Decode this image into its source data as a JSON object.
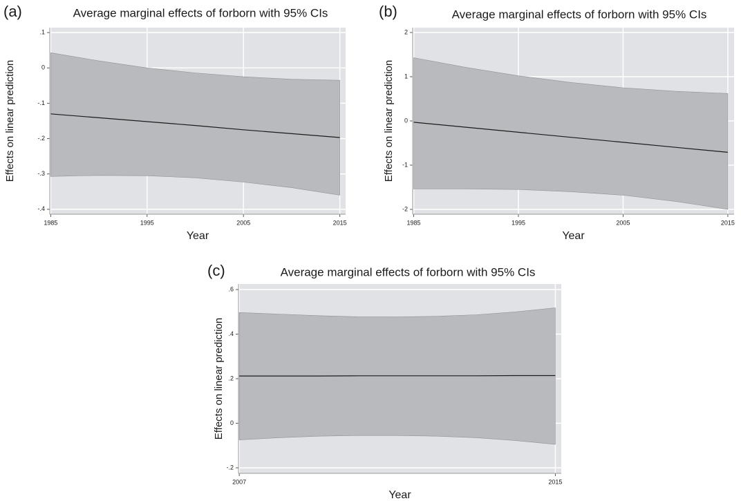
{
  "chart_data": [
    {
      "type": "line",
      "panel_label": "(a)",
      "title": "Average marginal effects of forborn with 95% CIs",
      "x_label": "Year",
      "y_label": "Effects on linear prediction",
      "x": [
        1985,
        1990,
        1995,
        2000,
        2005,
        2010,
        2015
      ],
      "series": [
        {
          "color": "#1a1a1a",
          "values": [
            -0.13,
            -0.141,
            -0.152,
            -0.163,
            -0.175,
            -0.186,
            -0.197
          ]
        }
      ],
      "ci_upper": [
        0.043,
        0.02,
        0.0,
        -0.014,
        -0.025,
        -0.032,
        -0.035
      ],
      "ci_lower": [
        -0.307,
        -0.304,
        -0.305,
        -0.311,
        -0.323,
        -0.339,
        -0.36
      ],
      "ci_color": "#b9babe",
      "xlim": [
        1984.9,
        2015.6
      ],
      "xticks": [
        1985,
        1995,
        2005,
        2015
      ],
      "ylim": [
        -0.414,
        0.114
      ],
      "yticks": [
        {
          "value": 0.1,
          "label": ".1"
        },
        0,
        {
          "value": -0.1,
          "label": "-.1"
        },
        {
          "value": -0.2,
          "label": "-.2"
        },
        {
          "value": -0.3,
          "label": "-.3"
        },
        {
          "value": -0.4,
          "label": "-.4"
        }
      ],
      "grid": true
    },
    {
      "type": "line",
      "panel_label": "(b)",
      "title": "Average marginal effects of forborn with 95% CIs",
      "x_label": "Year",
      "y_label": "Effects on linear prediction",
      "x": [
        1985,
        1990,
        1995,
        2000,
        2005,
        2010,
        2015
      ],
      "series": [
        {
          "color": "#1a1a1a",
          "values": [
            -0.03,
            -0.143,
            -0.257,
            -0.37,
            -0.483,
            -0.597,
            -0.71
          ]
        }
      ],
      "ci_upper": [
        1.43,
        1.21,
        1.02,
        0.87,
        0.75,
        0.67,
        0.62
      ],
      "ci_lower": [
        -1.54,
        -1.54,
        -1.55,
        -1.6,
        -1.68,
        -1.82,
        -2.0
      ],
      "ci_color": "#b9babe",
      "xlim": [
        1984.9,
        2015.6
      ],
      "xticks": [
        1985,
        1995,
        2005,
        2015
      ],
      "ylim": [
        -2.11,
        2.11
      ],
      "yticks": [
        2,
        1,
        0,
        -1,
        -2
      ],
      "grid": true
    },
    {
      "type": "line",
      "panel_label": "(c)",
      "title": "Average marginal effects of forborn with 95% CIs",
      "x_label": "Year",
      "y_label": "Effects on linear prediction",
      "x": [
        2007,
        2008,
        2009,
        2010,
        2011,
        2012,
        2013,
        2014,
        2015
      ],
      "series": [
        {
          "color": "#1a1a1a",
          "values": [
            0.212,
            0.212,
            0.212,
            0.213,
            0.213,
            0.213,
            0.213,
            0.214,
            0.214
          ]
        }
      ],
      "ci_upper": [
        0.497,
        0.49,
        0.483,
        0.478,
        0.477,
        0.48,
        0.487,
        0.5,
        0.518
      ],
      "ci_lower": [
        -0.075,
        -0.065,
        -0.058,
        -0.055,
        -0.055,
        -0.058,
        -0.065,
        -0.078,
        -0.095
      ],
      "ci_color": "#b9babe",
      "xlim": [
        2006.98,
        2015.15
      ],
      "xticks": [
        2007,
        2015
      ],
      "ylim": [
        -0.225,
        0.625
      ],
      "yticks": [
        {
          "value": 0.6,
          "label": ".6"
        },
        {
          "value": 0.4,
          "label": ".4"
        },
        {
          "value": 0.2,
          "label": ".2"
        },
        0,
        {
          "value": -0.2,
          "label": "-.2"
        }
      ],
      "grid": true
    }
  ]
}
